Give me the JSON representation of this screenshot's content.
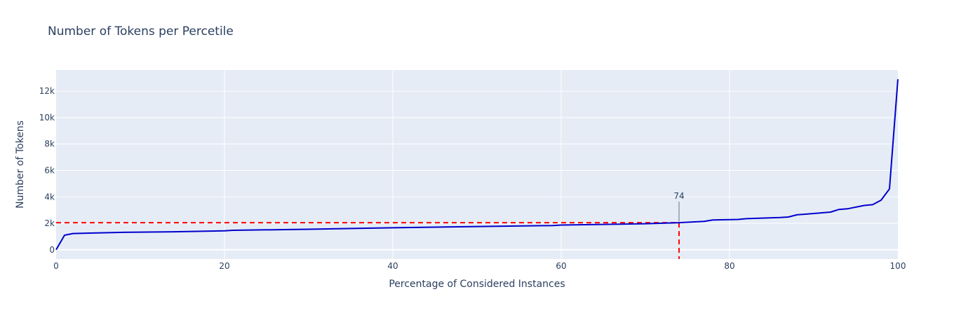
{
  "chart_data": {
    "type": "line",
    "title": "Number of Tokens per Percetile",
    "xlabel": "Percentage of Considered Instances",
    "ylabel": "Number of Tokens",
    "xlim": [
      0,
      100
    ],
    "ylim": [
      -700,
      13600
    ],
    "grid": true,
    "x_ticks": [
      0,
      20,
      40,
      60,
      80,
      100
    ],
    "x_tick_labels": [
      "0",
      "20",
      "40",
      "60",
      "80",
      "100"
    ],
    "y_ticks": [
      0,
      2000,
      4000,
      6000,
      8000,
      10000,
      12000
    ],
    "y_tick_labels": [
      "0",
      "2k",
      "4k",
      "6k",
      "8k",
      "10k",
      "12k"
    ],
    "series": [
      {
        "color": "#0000cc",
        "x": [
          0,
          1,
          2,
          4,
          8,
          14,
          20,
          21,
          30,
          40,
          50,
          59,
          60,
          70,
          74,
          76,
          77,
          78,
          80,
          81,
          82,
          85,
          86,
          87,
          88,
          90,
          92,
          93,
          94,
          96,
          97,
          98,
          99,
          100
        ],
        "y": [
          0,
          1100,
          1230,
          1260,
          1320,
          1360,
          1430,
          1470,
          1550,
          1660,
          1760,
          1830,
          1870,
          1970,
          2050,
          2110,
          2150,
          2250,
          2280,
          2290,
          2350,
          2420,
          2440,
          2480,
          2640,
          2740,
          2850,
          3050,
          3100,
          3350,
          3410,
          3750,
          4600,
          12900
        ]
      }
    ],
    "reference": {
      "x": 74,
      "y": 2050,
      "color": "#ff0000"
    },
    "annotation": {
      "text": "74",
      "x": 74,
      "y": 2050
    }
  }
}
